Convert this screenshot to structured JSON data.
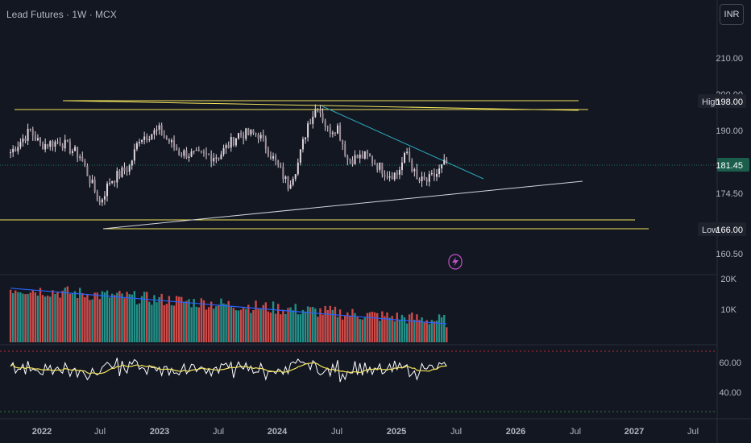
{
  "header": {
    "title": "Lead Futures · 1W · MCX",
    "currency_label": "INR"
  },
  "colors": {
    "background": "#131722",
    "up_candle": "#e0d6de",
    "down_candle": "#e0d6de",
    "trendline_yellow": "#f2e35a",
    "trendline_white": "#d1d4dc",
    "trendline_cyan": "#2aa6b8",
    "current_price_badge": "#1b5e4c",
    "volume_up": "#26a69a",
    "volume_down": "#ef5350",
    "volume_ma": "#2962ff",
    "rsi_line": "#ffffff",
    "rsi_ma": "#f2e35a"
  },
  "price_panel": {
    "price_ticks": [
      "210.00",
      "200.00",
      "190.00",
      "174.50",
      "160.50"
    ],
    "high_label": "High",
    "high_value": "198.00",
    "current_value": "181.45",
    "low_label": "Low",
    "low_value": "166.00",
    "lightning_icon": "lightning-icon"
  },
  "volume_panel": {
    "ticks": [
      "20K",
      "10K"
    ]
  },
  "rsi_panel": {
    "ticks": [
      "60.00",
      "40.00"
    ]
  },
  "time_axis": {
    "labels": [
      "2022",
      "Jul",
      "2023",
      "Jul",
      "2024",
      "Jul",
      "2025",
      "Jul",
      "2026",
      "Jul",
      "2027",
      "Jul"
    ]
  },
  "chart_data": {
    "type": "line",
    "title": "Lead Futures · 1W · MCX",
    "ylim": [
      157,
      212
    ],
    "price_series_name": "",
    "price_key_points": [
      {
        "x": "2021-10",
        "y": 184
      },
      {
        "x": "2021-12",
        "y": 190
      },
      {
        "x": "2022-01",
        "y": 186
      },
      {
        "x": "2022-03",
        "y": 187
      },
      {
        "x": "2022-05",
        "y": 183
      },
      {
        "x": "2022-07",
        "y": 170
      },
      {
        "x": "2022-08",
        "y": 176
      },
      {
        "x": "2022-10",
        "y": 180
      },
      {
        "x": "2022-11",
        "y": 188
      },
      {
        "x": "2023-01",
        "y": 190
      },
      {
        "x": "2023-03",
        "y": 184
      },
      {
        "x": "2023-05",
        "y": 183
      },
      {
        "x": "2023-07",
        "y": 183
      },
      {
        "x": "2023-09",
        "y": 189
      },
      {
        "x": "2023-11",
        "y": 189
      },
      {
        "x": "2024-01",
        "y": 180
      },
      {
        "x": "2024-02",
        "y": 175
      },
      {
        "x": "2024-03",
        "y": 181
      },
      {
        "x": "2024-04",
        "y": 192
      },
      {
        "x": "2024-05",
        "y": 197
      },
      {
        "x": "2024-06",
        "y": 190
      },
      {
        "x": "2024-07",
        "y": 191
      },
      {
        "x": "2024-08",
        "y": 182
      },
      {
        "x": "2024-10",
        "y": 183
      },
      {
        "x": "2024-12",
        "y": 178
      },
      {
        "x": "2025-01",
        "y": 178
      },
      {
        "x": "2025-02",
        "y": 184
      },
      {
        "x": "2025-03",
        "y": 176
      },
      {
        "x": "2025-04",
        "y": 176
      },
      {
        "x": "2025-05",
        "y": 178
      },
      {
        "x": "2025-06",
        "y": 181.45
      }
    ],
    "horizontal_levels": [
      198,
      166,
      181.45
    ]
  }
}
